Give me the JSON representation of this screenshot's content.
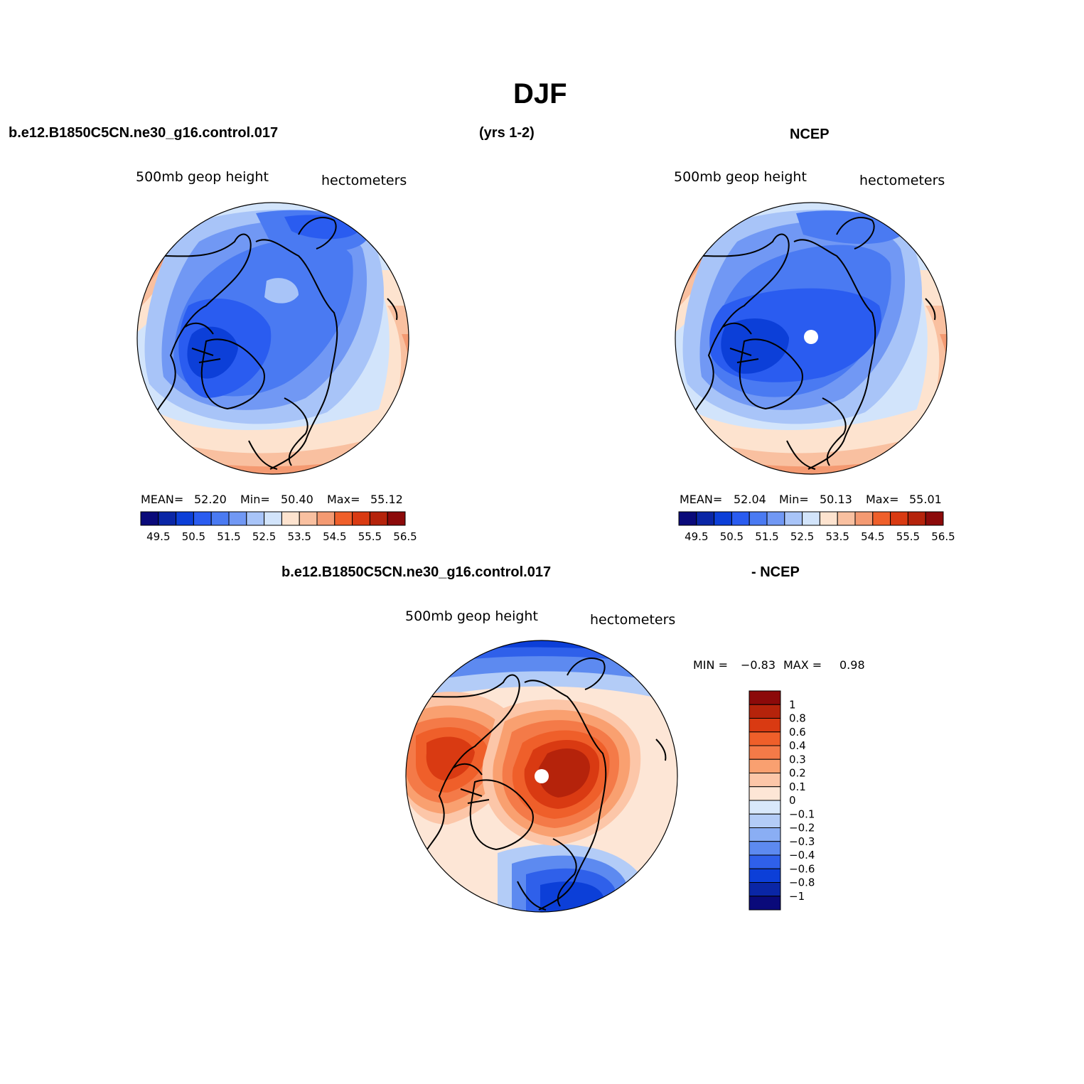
{
  "figure": {
    "title": "DJF",
    "case_label": "b.e12.B1850C5CN.ne30_g16.control.017",
    "years_label": "(yrs 1-2)",
    "obs_label": "NCEP",
    "diff_case_label": "b.e12.B1850C5CN.ne30_g16.control.017",
    "diff_obs_label": "- NCEP"
  },
  "panels": {
    "model": {
      "left_label": "500mb  geop  height",
      "right_label": "hectometers",
      "mean_label": "MEAN=",
      "mean": "52.20",
      "min_label": "Min=",
      "min": "50.40",
      "max_label": "Max=",
      "max": "55.12"
    },
    "obs": {
      "left_label": "500mb  geop  height",
      "right_label": "hectometers",
      "mean_label": "MEAN=",
      "mean": "52.04",
      "min_label": "Min=",
      "min": "50.13",
      "max_label": "Max=",
      "max": "55.01"
    },
    "diff": {
      "left_label": "500mb  geop  height",
      "right_label": "hectometers",
      "min_label": "MIN =",
      "min": "−0.83",
      "max_label": "MAX =",
      "max": "0.98"
    }
  },
  "chart_data": [
    {
      "type": "heatmap",
      "name": "model",
      "projection": "north polar stereographic",
      "units": "hectometers",
      "colorbar_orientation": "horizontal",
      "colorbar_ticks": [
        "49.5",
        "50.5",
        "51.5",
        "52.5",
        "53.5",
        "54.5",
        "55.5",
        "56.5"
      ],
      "levels": [
        49.5,
        50,
        50.5,
        51,
        51.5,
        52,
        52.5,
        53,
        53.5,
        54,
        54.5,
        55,
        55.5,
        56,
        56.5
      ],
      "colors": [
        "#0a0a7a",
        "#0a26a6",
        "#0c3fd8",
        "#2a5cf0",
        "#4a7af2",
        "#7198f4",
        "#a8c4f8",
        "#d2e4fb",
        "#fde3cf",
        "#f9c0a0",
        "#f49a72",
        "#ef5f2a",
        "#d93a12",
        "#b5230b",
        "#8c0a0a"
      ],
      "mean": 52.2,
      "min": 50.4,
      "max": 55.12
    },
    {
      "type": "heatmap",
      "name": "obs",
      "projection": "north polar stereographic",
      "units": "hectometers",
      "colorbar_orientation": "horizontal",
      "colorbar_ticks": [
        "49.5",
        "50.5",
        "51.5",
        "52.5",
        "53.5",
        "54.5",
        "55.5",
        "56.5"
      ],
      "levels": [
        49.5,
        50,
        50.5,
        51,
        51.5,
        52,
        52.5,
        53,
        53.5,
        54,
        54.5,
        55,
        55.5,
        56,
        56.5
      ],
      "colors": [
        "#0a0a7a",
        "#0a26a6",
        "#0c3fd8",
        "#2a5cf0",
        "#4a7af2",
        "#7198f4",
        "#a8c4f8",
        "#d2e4fb",
        "#fde3cf",
        "#f9c0a0",
        "#f49a72",
        "#ef5f2a",
        "#d93a12",
        "#b5230b",
        "#8c0a0a"
      ],
      "mean": 52.04,
      "min": 50.13,
      "max": 55.01
    },
    {
      "type": "heatmap",
      "name": "difference",
      "projection": "north polar stereographic",
      "units": "hectometers",
      "colorbar_orientation": "vertical",
      "colorbar_ticks": [
        "1",
        "0.8",
        "0.6",
        "0.4",
        "0.3",
        "0.2",
        "0.1",
        "0",
        "−0.1",
        "−0.2",
        "−0.3",
        "−0.4",
        "−0.6",
        "−0.8",
        "−1"
      ],
      "colors": [
        "#8c0a0a",
        "#b5230b",
        "#d93a12",
        "#ef5f2a",
        "#f47a48",
        "#f9a070",
        "#fcc6a8",
        "#fde6d6",
        "#d8e8fb",
        "#b3ccf7",
        "#8aaef4",
        "#5d8af0",
        "#2f60ea",
        "#0c3fd8",
        "#0a26a6",
        "#0a0a7a"
      ],
      "min": -0.83,
      "max": 0.98
    }
  ]
}
